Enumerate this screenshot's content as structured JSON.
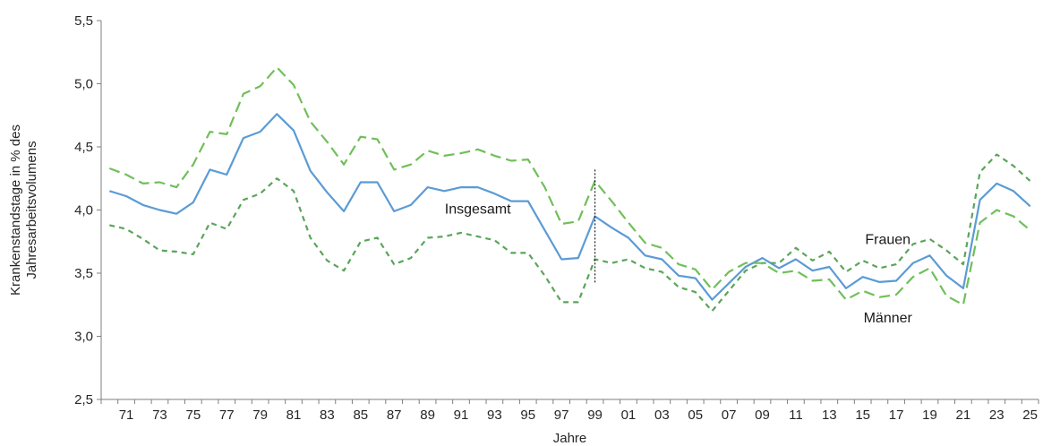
{
  "chart_data": {
    "type": "line",
    "title": "",
    "xlabel": "Jahre",
    "ylabel_lines": [
      "Krankenstandstage in % des",
      "Jahresarbeitsvolumens"
    ],
    "ylim": [
      2.5,
      5.5
    ],
    "yticks": [
      "2,5",
      "3,0",
      "3,5",
      "4,0",
      "4,5",
      "5,0",
      "5,5"
    ],
    "yticks_values": [
      2.5,
      3.0,
      3.5,
      4.0,
      4.5,
      5.0,
      5.5
    ],
    "x": [
      1970,
      1971,
      1972,
      1973,
      1974,
      1975,
      1976,
      1977,
      1978,
      1979,
      1980,
      1981,
      1982,
      1983,
      1984,
      1985,
      1986,
      1987,
      1988,
      1989,
      1990,
      1991,
      1992,
      1993,
      1994,
      1995,
      1996,
      1997,
      1998,
      1999,
      2000,
      2001,
      2002,
      2003,
      2004,
      2005,
      2006,
      2007,
      2008,
      2009,
      2010,
      2011,
      2012,
      2013,
      2014,
      2015,
      2016,
      2017,
      2018,
      2019,
      2020,
      2021,
      2022,
      2023,
      2024,
      2025
    ],
    "xtick_years": [
      1971,
      1973,
      1975,
      1977,
      1979,
      1981,
      1983,
      1985,
      1987,
      1989,
      1991,
      1993,
      1995,
      1997,
      1999,
      2001,
      2003,
      2005,
      2007,
      2009,
      2011,
      2013,
      2015,
      2017,
      2019,
      2021,
      2023,
      2025
    ],
    "xtick_labels": [
      "71",
      "73",
      "75",
      "77",
      "79",
      "81",
      "83",
      "85",
      "87",
      "89",
      "91",
      "93",
      "95",
      "97",
      "99",
      "01",
      "03",
      "05",
      "07",
      "09",
      "11",
      "13",
      "15",
      "17",
      "19",
      "21",
      "23",
      "25"
    ],
    "series": [
      {
        "name": "Insgesamt",
        "color": "#5b9bd5",
        "style": "solid",
        "values": [
          4.15,
          4.11,
          4.04,
          4.0,
          3.97,
          4.06,
          4.32,
          4.28,
          4.57,
          4.62,
          4.76,
          4.63,
          4.31,
          4.14,
          3.99,
          4.22,
          4.22,
          3.99,
          4.04,
          4.18,
          4.15,
          4.18,
          4.18,
          4.13,
          4.07,
          4.07,
          3.84,
          3.61,
          3.62,
          3.95,
          3.86,
          3.78,
          3.64,
          3.61,
          3.48,
          3.46,
          3.29,
          3.42,
          3.55,
          3.62,
          3.54,
          3.61,
          3.52,
          3.55,
          3.38,
          3.47,
          3.43,
          3.44,
          3.58,
          3.64,
          3.48,
          3.38,
          4.08,
          4.21,
          4.15,
          4.03
        ]
      },
      {
        "name": "Frauen",
        "color": "#5aa55a",
        "style": "short-dash",
        "values": [
          3.88,
          3.85,
          3.77,
          3.68,
          3.67,
          3.65,
          3.9,
          3.85,
          4.08,
          4.13,
          4.25,
          4.15,
          3.78,
          3.6,
          3.52,
          3.75,
          3.78,
          3.57,
          3.62,
          3.78,
          3.79,
          3.82,
          3.79,
          3.76,
          3.66,
          3.66,
          3.48,
          3.27,
          3.27,
          3.61,
          3.58,
          3.61,
          3.54,
          3.51,
          3.39,
          3.35,
          3.2,
          3.36,
          3.52,
          3.58,
          3.58,
          3.7,
          3.6,
          3.67,
          3.51,
          3.6,
          3.54,
          3.57,
          3.73,
          3.77,
          3.68,
          3.57,
          4.3,
          4.44,
          4.35,
          4.23
        ]
      },
      {
        "name": "Männer",
        "color": "#70bf5a",
        "style": "long-dash",
        "values": [
          4.33,
          4.28,
          4.21,
          4.22,
          4.18,
          4.36,
          4.62,
          4.6,
          4.92,
          4.98,
          5.13,
          4.99,
          4.7,
          4.54,
          4.36,
          4.58,
          4.56,
          4.32,
          4.36,
          4.47,
          4.43,
          4.45,
          4.48,
          4.43,
          4.39,
          4.4,
          4.18,
          3.89,
          3.91,
          4.23,
          4.07,
          3.9,
          3.74,
          3.7,
          3.57,
          3.53,
          3.37,
          3.51,
          3.58,
          3.58,
          3.5,
          3.52,
          3.44,
          3.45,
          3.29,
          3.36,
          3.31,
          3.33,
          3.47,
          3.54,
          3.32,
          3.25,
          3.9,
          4.0,
          3.95,
          3.84
        ]
      }
    ],
    "annotations": [
      {
        "text": "Insgesamt",
        "x": 1992,
        "y": 3.97
      },
      {
        "text": "Frauen",
        "x": 2016.5,
        "y": 3.73
      },
      {
        "text": "Männer",
        "x": 2016.5,
        "y": 3.11
      }
    ],
    "break_marker": {
      "x": 1999,
      "y_from": 3.42,
      "y_to": 4.32
    },
    "grid": false,
    "legend": "none"
  }
}
